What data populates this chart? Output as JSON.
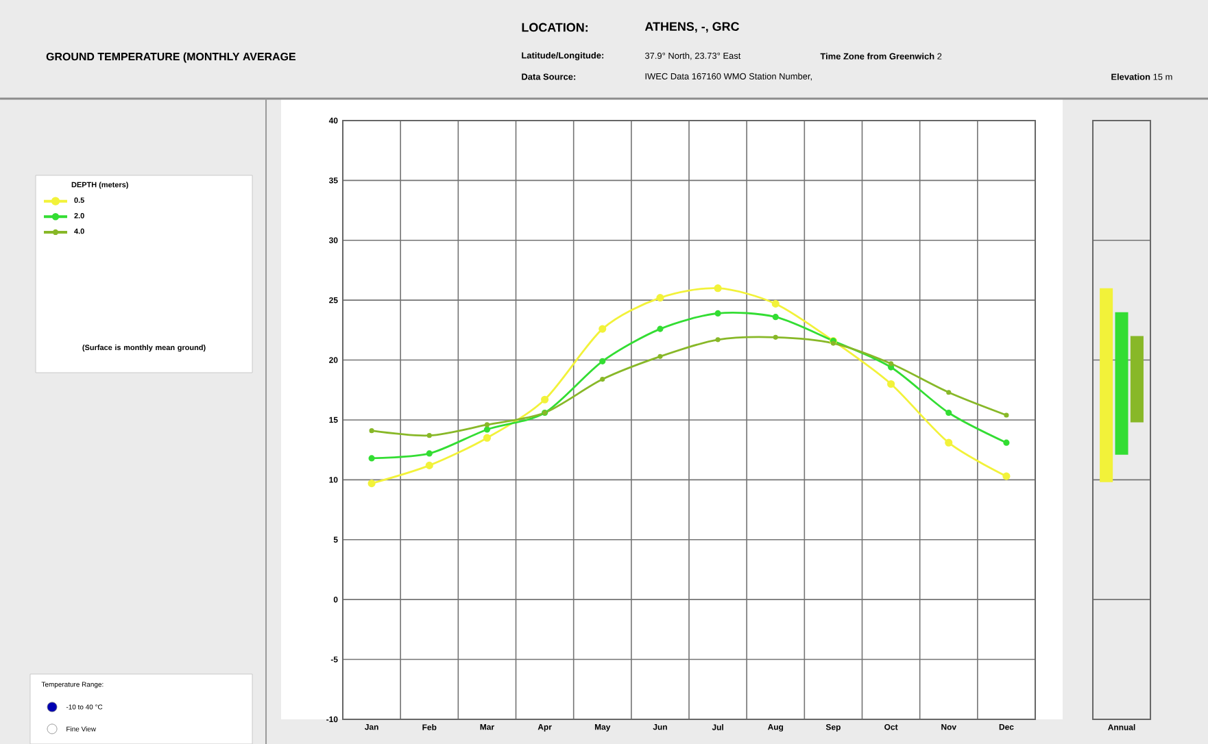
{
  "chart_data": [
    {
      "type": "line",
      "title": "GROUND TEMPERATURE (MONTHLY AVERAGE",
      "legend_title": "DEPTH (meters)",
      "annotations": [
        "LOCATION:",
        "ATHENS, -, GRC",
        "Latitude/Longitude:",
        "37.9° North, 23.73° East",
        "**Time Zone from Greenwich** 2",
        "Data Source:",
        "IWEC Data  167160 WMO Station Number,",
        "**Elevation** 15 m",
        "(Surface is monthly mean ground)",
        "Temperature Range:",
        "-10 to 40 °C",
        "Fine View"
      ],
      "categories": [
        "Jan",
        "Feb",
        "Mar",
        "Apr",
        "May",
        "Jun",
        "Jul",
        "Aug",
        "Sep",
        "Oct",
        "Nov",
        "Dec"
      ],
      "series": [
        {
          "name": "0.5",
          "color": "#f2f23a",
          "values": [
            9.7,
            11.2,
            13.5,
            16.7,
            22.6,
            25.2,
            26.0,
            24.7,
            21.6,
            18.0,
            13.1,
            10.3
          ]
        },
        {
          "name": "2.0",
          "color": "#33dd33",
          "values": [
            11.8,
            12.2,
            14.2,
            15.6,
            19.9,
            22.6,
            23.9,
            23.6,
            21.6,
            19.4,
            15.6,
            13.1
          ]
        },
        {
          "name": "4.0",
          "color": "#88b828",
          "values": [
            14.1,
            13.7,
            14.6,
            15.6,
            18.4,
            20.3,
            21.7,
            21.9,
            21.4,
            19.7,
            17.3,
            15.4
          ]
        }
      ],
      "ylim": [
        -10,
        40
      ],
      "yticks": [
        -10,
        -5,
        0,
        5,
        10,
        15,
        20,
        25,
        30,
        35,
        40
      ],
      "grid": true,
      "legend": "left",
      "marker": "circle"
    },
    {
      "type": "bar",
      "categories": [
        "Annual"
      ],
      "series": [
        {
          "color": "#f2f23a",
          "base": [
            9.8
          ],
          "values": [
            16.2
          ]
        },
        {
          "color": "#33dd33",
          "base": [
            12.1
          ],
          "values": [
            11.9
          ]
        },
        {
          "color": "#88b828",
          "base": [
            14.8
          ],
          "values": [
            7.2
          ]
        }
      ],
      "ylim": [
        -10,
        40
      ],
      "tick_labels": "x",
      "grid": "y"
    }
  ]
}
